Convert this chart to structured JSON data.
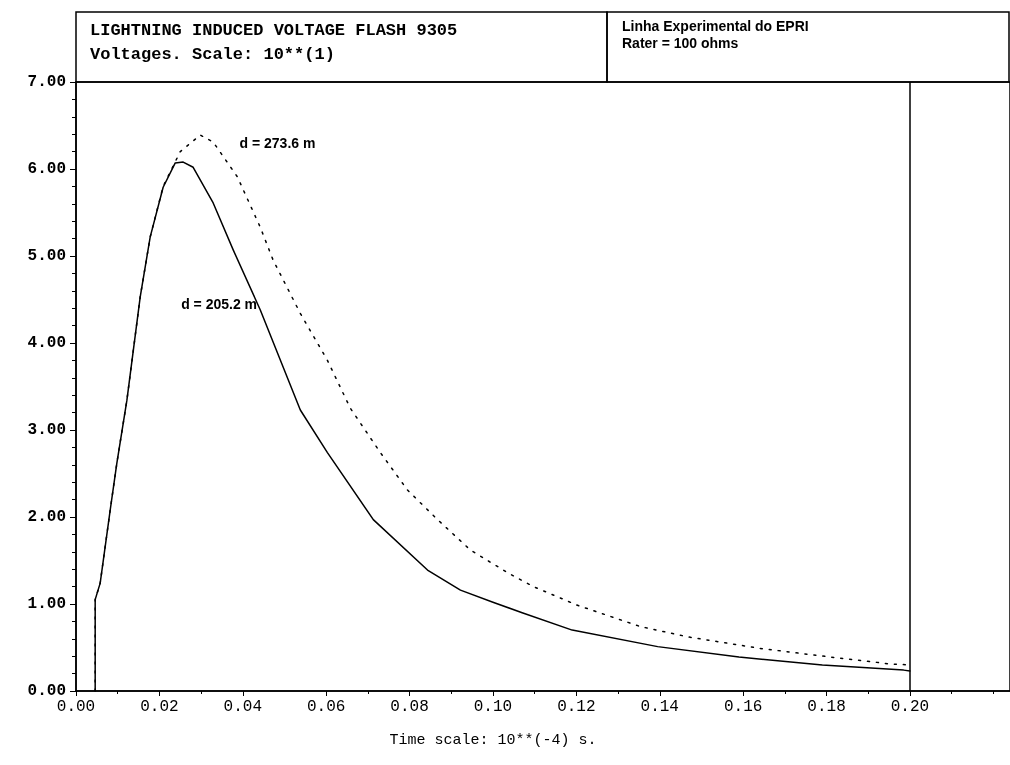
{
  "chart_data": {
    "type": "line",
    "title": "LIGHTNING INDUCED VOLTAGE FLASH 9305",
    "subtitle": "Voltages. Scale: 10**(1)",
    "xlabel": "Time scale: 10**(-4) s.",
    "annotations": [
      "Linha Experimental do EPRI",
      "Rater = 100 ohms"
    ],
    "xlim": [
      0,
      0.224
    ],
    "xticks": [
      {
        "value": 0,
        "label": "0.00"
      },
      {
        "value": 0.02,
        "label": "0.02"
      },
      {
        "value": 0.04,
        "label": "0.04"
      },
      {
        "value": 0.06,
        "label": "0.06"
      },
      {
        "value": 0.08,
        "label": "0.08"
      },
      {
        "value": 0.1,
        "label": "0.10"
      },
      {
        "value": 0.12,
        "label": "0.12"
      },
      {
        "value": 0.14,
        "label": "0.14"
      },
      {
        "value": 0.16,
        "label": "0.16"
      },
      {
        "value": 0.18,
        "label": "0.18"
      },
      {
        "value": 0.2,
        "label": "0.20"
      }
    ],
    "ylim": [
      0,
      7
    ],
    "yticks": [
      {
        "value": 0,
        "label": "0.00"
      },
      {
        "value": 1,
        "label": "1.00"
      },
      {
        "value": 2,
        "label": "2.00"
      },
      {
        "value": 3,
        "label": "3.00"
      },
      {
        "value": 4,
        "label": "4.00"
      },
      {
        "value": 5,
        "label": "5.00"
      },
      {
        "value": 6,
        "label": "6.00"
      },
      {
        "value": 7,
        "label": "7.00"
      }
    ],
    "grid": false,
    "legend": false,
    "marker": "none",
    "ref_lines": [
      {
        "axis": "x",
        "value": 0.2,
        "color": "#000000"
      }
    ],
    "series": [
      {
        "name": "d = 273.6 m",
        "color": "#000000",
        "line_style": "dotted",
        "x": [
          0.0046,
          0.0046,
          0.0046,
          0.0058,
          0.0082,
          0.0098,
          0.0122,
          0.0154,
          0.0178,
          0.0209,
          0.025,
          0.0298,
          0.0329,
          0.0387,
          0.0442,
          0.0473,
          0.0538,
          0.0603,
          0.0658,
          0.073,
          0.0795,
          0.0867,
          0.0946,
          0.1035,
          0.1097,
          0.12,
          0.1354,
          0.147,
          0.164,
          0.181,
          0.1954,
          0.2
        ],
        "values": [
          0,
          0.51,
          1.05,
          1.24,
          2.08,
          2.62,
          3.34,
          4.53,
          5.22,
          5.8,
          6.2,
          6.39,
          6.31,
          5.91,
          5.33,
          4.95,
          4.34,
          3.8,
          3.25,
          2.74,
          2.31,
          1.97,
          1.62,
          1.36,
          1.2,
          0.99,
          0.74,
          0.62,
          0.49,
          0.39,
          0.31,
          0.3
        ]
      },
      {
        "name": "d = 205.2 m",
        "color": "#000000",
        "line_style": "solid",
        "x": [
          0.0046,
          0.0046,
          0.0046,
          0.0058,
          0.0082,
          0.0098,
          0.0122,
          0.0154,
          0.0178,
          0.0209,
          0.0238,
          0.0257,
          0.0281,
          0.0329,
          0.0377,
          0.0442,
          0.0538,
          0.0603,
          0.0713,
          0.0843,
          0.0922,
          0.1,
          0.107,
          0.119,
          0.1395,
          0.159,
          0.179,
          0.1985,
          0.2
        ],
        "values": [
          0,
          0.51,
          1.05,
          1.24,
          2.08,
          2.62,
          3.34,
          4.53,
          5.22,
          5.79,
          6.07,
          6.08,
          6.02,
          5.61,
          5.07,
          4.38,
          3.23,
          2.74,
          1.97,
          1.39,
          1.16,
          1.02,
          0.9,
          0.7,
          0.51,
          0.39,
          0.3,
          0.24,
          0.23
        ]
      }
    ]
  }
}
